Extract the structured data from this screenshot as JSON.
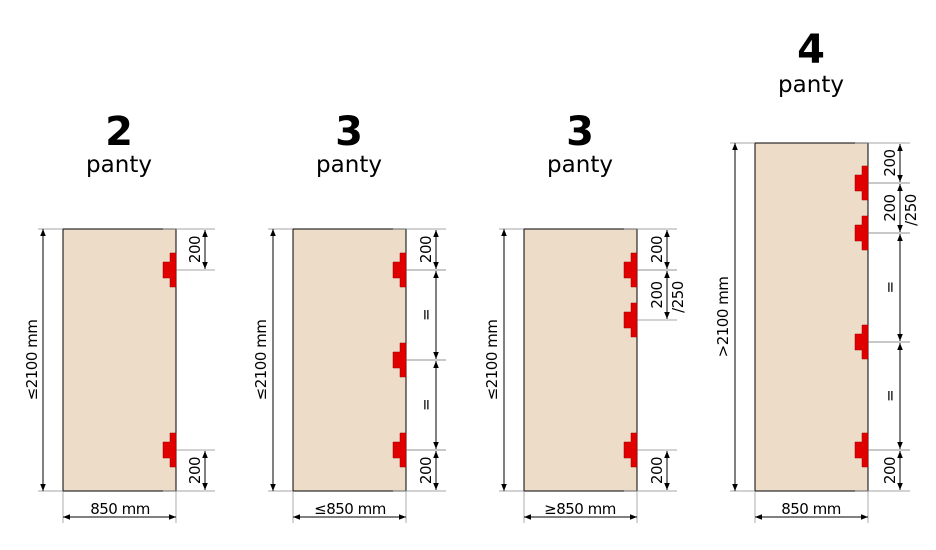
{
  "colors": {
    "door": "#ecdcc8",
    "hinge": "#e00000",
    "line": "#000000"
  },
  "doors": [
    {
      "number": "2",
      "word": "panty",
      "height_label": "≤2100 mm",
      "width_label": "850 mm",
      "segments": [
        {
          "label": "200"
        },
        {
          "label": "200"
        }
      ]
    },
    {
      "number": "3",
      "word": "panty",
      "height_label": "≤2100 mm",
      "width_label": "≤850 mm",
      "segments": [
        {
          "label": "200"
        },
        {
          "label": "="
        },
        {
          "label": "="
        },
        {
          "label": "200"
        }
      ]
    },
    {
      "number": "3",
      "word": "panty",
      "height_label": "≤2100 mm",
      "width_label": "≥850 mm",
      "segments": [
        {
          "label": "200"
        },
        {
          "label": "200",
          "sub": "/250"
        },
        {
          "label": "200"
        }
      ]
    },
    {
      "number": "4",
      "word": "panty",
      "height_label": ">2100 mm",
      "width_label": "850 mm",
      "segments": [
        {
          "label": "200"
        },
        {
          "label": "200",
          "sub": "/250"
        },
        {
          "label": "="
        },
        {
          "label": "="
        },
        {
          "label": "200"
        }
      ]
    }
  ]
}
